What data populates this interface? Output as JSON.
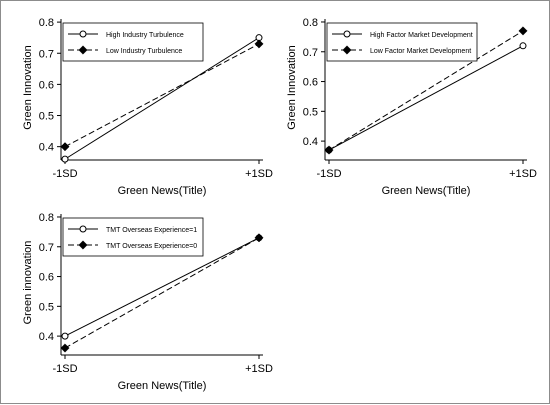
{
  "figure": {
    "background": "#ffffff",
    "border_color": "#8c8c8c"
  },
  "chart_data": [
    {
      "type": "line",
      "xlabel": "Green News(Title)",
      "ylabel": "Green Innovation",
      "categories": [
        "-1SD",
        "+1SD"
      ],
      "yticks": [
        "0.4",
        "0.5",
        "0.6",
        "0.7",
        "0.8"
      ],
      "ylim": [
        0.37,
        0.81
      ],
      "legend_position": "top-left",
      "grid": false,
      "series": [
        {
          "name": "High Industry Turbulence",
          "values": [
            0.36,
            0.75
          ],
          "marker": "hollow-circle",
          "dash": "solid"
        },
        {
          "name": "Low Industry Turbulence",
          "values": [
            0.4,
            0.73
          ],
          "marker": "filled-diamond",
          "dash": "dashed"
        }
      ]
    },
    {
      "type": "line",
      "xlabel": "Green News(Title)",
      "ylabel": "Green Innovation",
      "categories": [
        "-1SD",
        "+1SD"
      ],
      "yticks": [
        "0.4",
        "0.5",
        "0.6",
        "0.7",
        "0.8"
      ],
      "ylim": [
        0.35,
        0.81
      ],
      "legend_position": "top-left",
      "grid": false,
      "series": [
        {
          "name": "High Factor Market Development",
          "values": [
            0.37,
            0.72
          ],
          "marker": "hollow-circle",
          "dash": "solid"
        },
        {
          "name": "Low Factor Market Development",
          "values": [
            0.37,
            0.77
          ],
          "marker": "filled-diamond",
          "dash": "dashed"
        }
      ]
    },
    {
      "type": "line",
      "xlabel": "Green News(Title)",
      "ylabel": "Green innovation",
      "categories": [
        "-1SD",
        "+1SD"
      ],
      "yticks": [
        "0.4",
        "0.5",
        "0.6",
        "0.7",
        "0.8"
      ],
      "ylim": [
        0.35,
        0.81
      ],
      "legend_position": "top-left",
      "grid": false,
      "series": [
        {
          "name": "TMT Overseas Experience=1",
          "values": [
            0.4,
            0.73
          ],
          "marker": "hollow-circle",
          "dash": "solid"
        },
        {
          "name": "TMT Overseas Experience=0",
          "values": [
            0.36,
            0.73
          ],
          "marker": "filled-diamond",
          "dash": "dashed"
        }
      ]
    }
  ]
}
